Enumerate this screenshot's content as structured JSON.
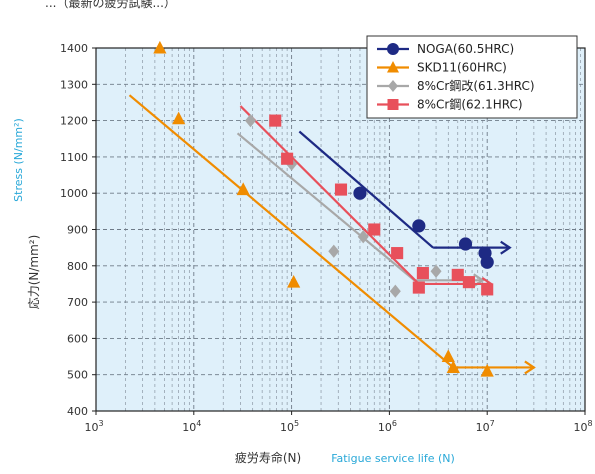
{
  "header_fragment": "...（最新の疲労試験...）",
  "chart_data": {
    "type": "scatter",
    "xscale": "log",
    "xlim": [
      1000,
      100000000
    ],
    "ylim": [
      400,
      1400
    ],
    "x_ticks": [
      {
        "value": 1000,
        "base": "10",
        "exp": "3"
      },
      {
        "value": 10000,
        "base": "10",
        "exp": "4"
      },
      {
        "value": 100000,
        "base": "10",
        "exp": "5"
      },
      {
        "value": 1000000,
        "base": "10",
        "exp": "6"
      },
      {
        "value": 10000000,
        "base": "10",
        "exp": "7"
      },
      {
        "value": 100000000,
        "base": "10",
        "exp": "8"
      }
    ],
    "y_ticks": [
      400,
      500,
      600,
      700,
      800,
      900,
      1000,
      1100,
      1200,
      1300,
      1400
    ],
    "ylabel_jp": "応力(N/mm²)",
    "ylabel_en": "Stress (N/mm²)",
    "xlabel_jp": "疲労寿命(N)",
    "xlabel_en": "Fatigue service life (N)",
    "grid": true,
    "legend_position": "top-right",
    "plot_background": "#dff0fa",
    "series": [
      {
        "name": "NOGA(60.5HRC)",
        "color": "#1e2a84",
        "marker": "circle",
        "points": [
          [
            500000,
            1000
          ],
          [
            2000000,
            910
          ],
          [
            6000000,
            860
          ],
          [
            9500000,
            835
          ],
          [
            10000000,
            810
          ]
        ],
        "line": [
          [
            120000,
            1170
          ],
          [
            2800000,
            850
          ]
        ],
        "runout": [
          [
            2800000,
            850
          ],
          [
            17000000,
            850
          ]
        ]
      },
      {
        "name": "SKD11(60HRC)",
        "color": "#f08c00",
        "marker": "triangle",
        "points": [
          [
            4500,
            1400
          ],
          [
            7000,
            1205
          ],
          [
            32000,
            1010
          ],
          [
            105000,
            755
          ],
          [
            4000000,
            550
          ],
          [
            4500000,
            520
          ],
          [
            10000000,
            510
          ]
        ],
        "line": [
          [
            2200,
            1270
          ],
          [
            4500000,
            520
          ]
        ],
        "runout": [
          [
            4500000,
            520
          ],
          [
            30000000,
            520
          ]
        ]
      },
      {
        "name": "8%Cr鋼改(61.3HRC)",
        "color": "#a8a8a8",
        "marker": "diamond",
        "points": [
          [
            38000,
            1200
          ],
          [
            100000,
            1080
          ],
          [
            270000,
            840
          ],
          [
            540000,
            880
          ],
          [
            1150000,
            730
          ],
          [
            3000000,
            785
          ]
        ],
        "line": [
          [
            28000,
            1165
          ],
          [
            1800000,
            760
          ]
        ],
        "runout": [
          [
            1800000,
            760
          ],
          [
            9000000,
            760
          ]
        ]
      },
      {
        "name": "8%Cr鋼(62.1HRC)",
        "color": "#e8505b",
        "marker": "square",
        "points": [
          [
            68000,
            1200
          ],
          [
            90000,
            1095
          ],
          [
            320000,
            1010
          ],
          [
            700000,
            900
          ],
          [
            1200000,
            835
          ],
          [
            2000000,
            740
          ],
          [
            2200000,
            780
          ],
          [
            5000000,
            775
          ],
          [
            6500000,
            755
          ],
          [
            10000000,
            735
          ]
        ],
        "line": [
          [
            30000,
            1240
          ],
          [
            2000000,
            750
          ]
        ],
        "runout": [
          [
            2000000,
            750
          ],
          [
            11000000,
            750
          ]
        ]
      }
    ]
  }
}
